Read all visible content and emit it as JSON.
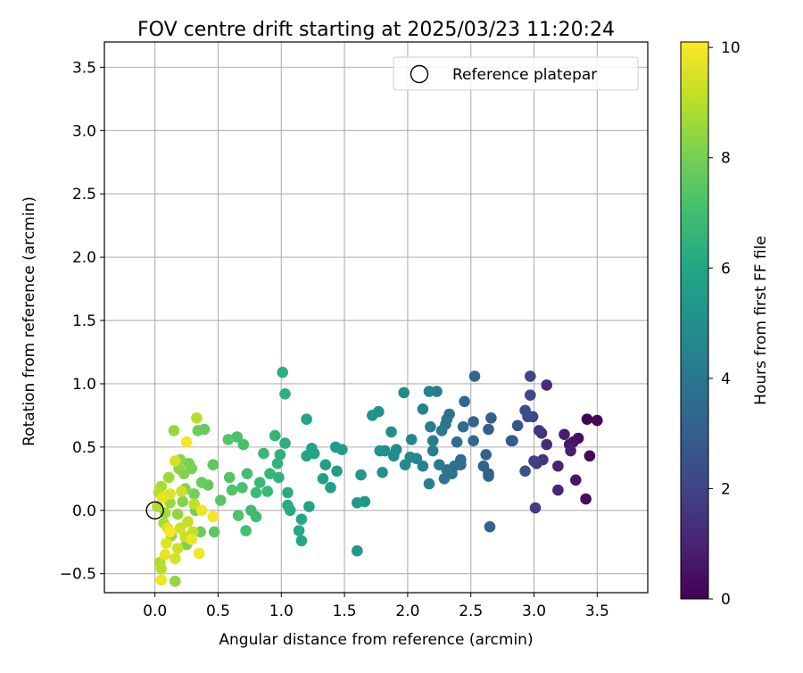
{
  "chart_data": {
    "type": "scatter",
    "title": "FOV centre drift starting at 2025/03/23 11:20:24",
    "xlabel": "Angular distance from reference (arcmin)",
    "ylabel": "Rotation from reference (arcmin)",
    "xlim": [
      -0.4,
      3.9
    ],
    "ylim": [
      -0.65,
      3.7
    ],
    "xticks": [
      0.0,
      0.5,
      1.0,
      1.5,
      2.0,
      2.5,
      3.0,
      3.5
    ],
    "xtick_labels": [
      "0.0",
      "0.5",
      "1.0",
      "1.5",
      "2.0",
      "2.5",
      "3.0",
      "3.5"
    ],
    "yticks": [
      -0.5,
      0.0,
      0.5,
      1.0,
      1.5,
      2.0,
      2.5,
      3.0,
      3.5
    ],
    "ytick_labels": [
      "−0.5",
      "0.0",
      "0.5",
      "1.0",
      "1.5",
      "2.0",
      "2.5",
      "3.0",
      "3.5"
    ],
    "grid": true,
    "legend": {
      "placement": "top-right",
      "entries": [
        "Reference platepar"
      ]
    },
    "reference_point": {
      "x": 0.0,
      "y": 0.0
    },
    "colorbar": {
      "label": "Hours from first FF file",
      "colormap": "viridis",
      "range": [
        0,
        10.1
      ],
      "ticks": [
        0,
        2,
        4,
        6,
        8,
        10
      ],
      "tick_labels": [
        "0",
        "2",
        "4",
        "6",
        "8",
        "10"
      ]
    },
    "series": [
      {
        "points": [
          [
            3.5,
            0.71,
            0.1
          ],
          [
            3.42,
            0.72,
            0.1
          ],
          [
            3.44,
            0.43,
            0.2
          ],
          [
            3.41,
            0.09,
            0.3
          ],
          [
            3.35,
            0.57,
            0.4
          ],
          [
            3.31,
            0.54,
            0.5
          ],
          [
            3.33,
            0.24,
            0.6
          ],
          [
            3.28,
            0.52,
            0.7
          ],
          [
            3.24,
            0.6,
            0.8
          ],
          [
            3.29,
            0.47,
            0.9
          ],
          [
            3.19,
            0.35,
            1.0
          ],
          [
            3.19,
            0.16,
            1.1
          ],
          [
            3.1,
            0.99,
            1.2
          ],
          [
            3.1,
            0.52,
            1.3
          ],
          [
            3.06,
            0.61,
            1.4
          ],
          [
            3.07,
            0.4,
            1.5
          ],
          [
            3.04,
            0.63,
            1.6
          ],
          [
            3.02,
            0.37,
            1.7
          ],
          [
            3.01,
            0.02,
            1.8
          ],
          [
            3.0,
            0.39,
            1.9
          ],
          [
            2.99,
            0.74,
            2.0
          ],
          [
            2.97,
            1.06,
            2.1
          ],
          [
            2.97,
            0.91,
            2.2
          ],
          [
            2.95,
            0.74,
            2.3
          ],
          [
            2.93,
            0.79,
            2.4
          ],
          [
            2.93,
            0.31,
            2.5
          ],
          [
            2.87,
            0.67,
            2.6
          ],
          [
            2.83,
            0.55,
            2.7
          ],
          [
            2.82,
            0.55,
            2.8
          ],
          [
            2.66,
            0.73,
            2.9
          ],
          [
            2.64,
            0.64,
            3.0
          ],
          [
            2.64,
            0.29,
            3.05
          ],
          [
            2.64,
            0.27,
            3.1
          ],
          [
            2.65,
            -0.13,
            3.15
          ],
          [
            2.62,
            0.44,
            3.2
          ],
          [
            2.6,
            0.35,
            3.25
          ],
          [
            2.53,
            1.06,
            3.3
          ],
          [
            2.52,
            0.7,
            3.35
          ],
          [
            2.52,
            0.55,
            3.4
          ],
          [
            2.45,
            0.86,
            3.45
          ],
          [
            2.44,
            0.66,
            3.5
          ],
          [
            2.42,
            0.4,
            3.55
          ],
          [
            2.42,
            0.36,
            3.6
          ],
          [
            2.39,
            0.54,
            3.65
          ],
          [
            2.37,
            0.35,
            3.7
          ],
          [
            2.35,
            0.29,
            3.75
          ],
          [
            2.33,
            0.76,
            3.8
          ],
          [
            2.31,
            0.72,
            3.85
          ],
          [
            2.3,
            0.68,
            3.9
          ],
          [
            2.31,
            0.32,
            3.95
          ],
          [
            2.29,
            0.25,
            4.0
          ],
          [
            2.27,
            0.63,
            4.05
          ],
          [
            2.25,
            0.36,
            4.1
          ],
          [
            2.23,
            0.94,
            4.15
          ],
          [
            2.2,
            0.55,
            4.2
          ],
          [
            2.2,
            0.47,
            4.25
          ],
          [
            2.18,
            0.66,
            4.3
          ],
          [
            2.17,
            0.94,
            4.35
          ],
          [
            2.17,
            0.21,
            4.4
          ],
          [
            2.12,
            0.8,
            4.5
          ],
          [
            2.12,
            0.35,
            4.55
          ],
          [
            2.07,
            0.41,
            4.6
          ],
          [
            2.03,
            0.56,
            4.65
          ],
          [
            2.02,
            0.42,
            4.7
          ],
          [
            1.98,
            0.36,
            4.75
          ],
          [
            1.97,
            0.93,
            4.8
          ],
          [
            1.91,
            0.48,
            4.85
          ],
          [
            1.89,
            0.43,
            4.9
          ],
          [
            1.87,
            0.62,
            4.95
          ],
          [
            1.82,
            0.47,
            5.0
          ],
          [
            1.8,
            0.3,
            5.05
          ],
          [
            1.78,
            0.47,
            5.1
          ],
          [
            1.77,
            0.78,
            5.15
          ],
          [
            1.72,
            0.75,
            5.2
          ],
          [
            1.66,
            0.07,
            5.25
          ],
          [
            1.63,
            0.28,
            5.3
          ],
          [
            1.6,
            0.06,
            5.35
          ],
          [
            1.6,
            -0.32,
            5.4
          ],
          [
            1.48,
            0.48,
            5.45
          ],
          [
            1.43,
            0.5,
            5.5
          ],
          [
            1.44,
            0.31,
            5.55
          ],
          [
            1.39,
            0.18,
            5.6
          ],
          [
            1.35,
            0.36,
            5.65
          ],
          [
            1.33,
            0.25,
            5.7
          ],
          [
            1.26,
            0.45,
            5.75
          ],
          [
            1.24,
            0.49,
            5.8
          ],
          [
            1.22,
            0.03,
            5.85
          ],
          [
            1.2,
            0.72,
            5.9
          ],
          [
            1.2,
            0.43,
            5.95
          ],
          [
            1.16,
            -0.24,
            6.0
          ],
          [
            1.16,
            -0.07,
            6.05
          ],
          [
            1.14,
            -0.16,
            6.1
          ],
          [
            1.07,
            0.0,
            6.15
          ],
          [
            1.05,
            0.14,
            6.2
          ],
          [
            1.05,
            0.04,
            6.25
          ],
          [
            1.03,
            0.53,
            6.3
          ],
          [
            1.03,
            0.92,
            6.35
          ],
          [
            1.01,
            1.09,
            6.4
          ],
          [
            0.99,
            0.44,
            6.45
          ],
          [
            0.98,
            0.26,
            6.5
          ],
          [
            0.97,
            0.37,
            6.55
          ],
          [
            0.95,
            0.59,
            6.6
          ],
          [
            0.91,
            0.29,
            6.65
          ],
          [
            0.89,
            0.15,
            6.7
          ],
          [
            0.86,
            0.45,
            6.75
          ],
          [
            0.83,
            0.22,
            6.8
          ],
          [
            0.8,
            0.14,
            6.85
          ],
          [
            0.8,
            -0.05,
            6.9
          ],
          [
            0.76,
            0.0,
            6.95
          ],
          [
            0.73,
            0.29,
            7.0
          ],
          [
            0.72,
            -0.16,
            7.05
          ],
          [
            0.7,
            0.52,
            7.1
          ],
          [
            0.69,
            0.18,
            7.15
          ],
          [
            0.65,
            0.58,
            7.2
          ],
          [
            0.66,
            -0.04,
            7.25
          ],
          [
            0.61,
            0.16,
            7.3
          ],
          [
            0.59,
            0.26,
            7.35
          ],
          [
            0.58,
            0.56,
            7.4
          ],
          [
            0.52,
            0.08,
            7.45
          ],
          [
            0.47,
            -0.17,
            7.5
          ],
          [
            0.46,
            0.36,
            7.6
          ],
          [
            0.42,
            0.2,
            7.65
          ],
          [
            0.39,
            0.64,
            7.7
          ],
          [
            0.37,
            0.22,
            7.75
          ],
          [
            0.36,
            -0.17,
            7.8
          ],
          [
            0.34,
            0.63,
            7.85
          ],
          [
            0.32,
            0.0,
            7.9
          ],
          [
            0.31,
            0.13,
            7.95
          ],
          [
            0.29,
            0.33,
            8.0
          ],
          [
            0.27,
            0.37,
            8.05
          ],
          [
            0.25,
            -0.27,
            8.1
          ],
          [
            0.24,
            0.17,
            8.15
          ],
          [
            0.23,
            0.29,
            8.2
          ],
          [
            0.22,
            0.07,
            8.25
          ],
          [
            0.2,
            0.4,
            8.3
          ],
          [
            0.19,
            0.33,
            8.35
          ],
          [
            0.18,
            -0.03,
            8.4
          ],
          [
            0.16,
            -0.56,
            8.45
          ],
          [
            0.15,
            0.63,
            8.5
          ],
          [
            0.13,
            -0.2,
            8.55
          ],
          [
            0.12,
            0.06,
            8.6
          ],
          [
            0.11,
            0.26,
            8.65
          ],
          [
            0.08,
            -0.02,
            8.7
          ],
          [
            0.07,
            -0.1,
            8.75
          ],
          [
            0.05,
            0.19,
            8.8
          ],
          [
            0.04,
            -0.41,
            8.85
          ],
          [
            0.02,
            0.03,
            8.9
          ],
          [
            0.03,
            0.14,
            8.95
          ],
          [
            0.05,
            -0.46,
            9.0
          ],
          [
            0.33,
            0.73,
            9.05
          ],
          [
            0.31,
            0.05,
            9.1
          ],
          [
            0.3,
            -0.17,
            9.15
          ],
          [
            0.26,
            -0.09,
            9.2
          ],
          [
            0.24,
            -0.21,
            9.25
          ],
          [
            0.21,
            0.15,
            9.3
          ],
          [
            0.2,
            -0.14,
            9.35
          ],
          [
            0.18,
            -0.3,
            9.4
          ],
          [
            0.16,
            0.39,
            9.45
          ],
          [
            0.16,
            -0.38,
            9.5
          ],
          [
            0.12,
            0.13,
            9.55
          ],
          [
            0.1,
            -0.14,
            9.6
          ],
          [
            0.09,
            -0.26,
            9.65
          ],
          [
            0.08,
            -0.35,
            9.7
          ],
          [
            0.06,
            0.1,
            9.75
          ],
          [
            0.05,
            -0.55,
            9.8
          ],
          [
            0.37,
            0.0,
            9.85
          ],
          [
            0.29,
            -0.23,
            9.9
          ],
          [
            0.35,
            -0.34,
            9.92
          ],
          [
            0.46,
            -0.05,
            9.95
          ],
          [
            0.25,
            0.54,
            9.98
          ],
          [
            0.12,
            -0.17,
            10.02
          ]
        ]
      }
    ]
  }
}
